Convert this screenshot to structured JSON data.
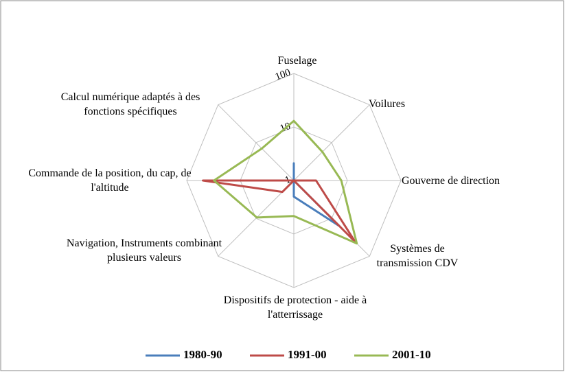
{
  "chart_data": {
    "type": "radar",
    "categories": [
      "Fuselage",
      "Voilures",
      "Gouverne de direction",
      "Systèmes de transmission CDV",
      "Dispositifs de protection - aide à l'atterrissage",
      "Navigation, Instruments combinant plusieurs valeurs",
      "Commande de la position, du cap, de l'altitude",
      "Calcul numérique adaptés à des fonctions spécifiques"
    ],
    "log_scale": true,
    "rlim": [
      1,
      100
    ],
    "rticks": [
      1,
      10,
      100
    ],
    "series": [
      {
        "name": "1980-90",
        "color": "#4a7ebb",
        "values": [
          2.1,
          1,
          1,
          16,
          2,
          1,
          44,
          1
        ]
      },
      {
        "name": "1991-00",
        "color": "#be4b48",
        "values": [
          1,
          1,
          2.6,
          42,
          1,
          2,
          50,
          1
        ]
      },
      {
        "name": "2001-10",
        "color": "#98b954",
        "values": [
          13,
          5.7,
          7.7,
          46,
          4.6,
          9.5,
          31,
          7
        ]
      }
    ],
    "legend": "bottom"
  }
}
